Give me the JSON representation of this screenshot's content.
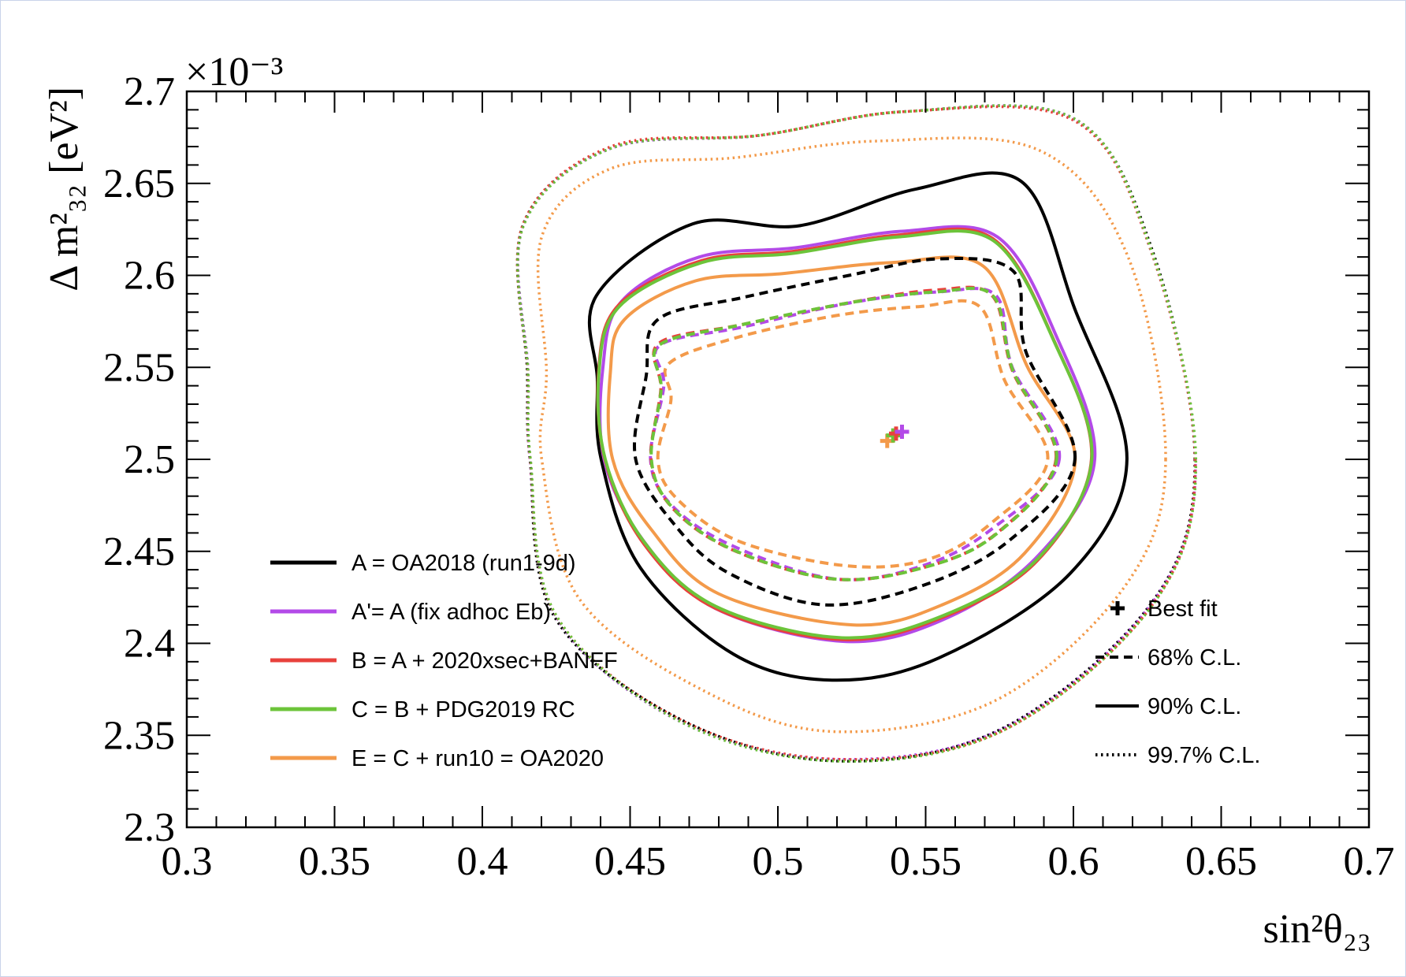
{
  "chart_data": {
    "type": "line",
    "plot": "contour",
    "xlabel": "sin²θ₂₃",
    "ylabel": "Δ m²₃₂ [eV²]",
    "y_multiplier": "×10⁻³",
    "xlim": [
      0.3,
      0.7
    ],
    "ylim": [
      2.3,
      2.7
    ],
    "x_ticks": [
      0.3,
      0.35,
      0.4,
      0.45,
      0.5,
      0.55,
      0.6,
      0.65,
      0.7
    ],
    "x_tick_labels": [
      "0.3",
      "0.35",
      "0.4",
      "0.45",
      "0.5",
      "0.55",
      "0.6",
      "0.65",
      "0.7"
    ],
    "y_ticks": [
      2.3,
      2.35,
      2.4,
      2.45,
      2.5,
      2.55,
      2.6,
      2.65,
      2.7
    ],
    "y_tick_labels": [
      "2.3",
      "2.35",
      "2.4",
      "2.45",
      "2.5",
      "2.55",
      "2.6",
      "2.65",
      "2.7"
    ],
    "grid": false,
    "colors": {
      "A": "#000000",
      "A_prime": "#b34ae8",
      "B": "#e8413c",
      "C": "#6cc43a",
      "E": "#f39a4a"
    },
    "legend_position": "lower-left",
    "style_legend_position": "lower-right",
    "series_legend": [
      {
        "key": "A",
        "label": "A = OA2018 (run1-9d)",
        "color": "#000000"
      },
      {
        "key": "A_prime",
        "label": "A'= A (fix adhoc Eb)",
        "color": "#b34ae8"
      },
      {
        "key": "B",
        "label": "B = A + 2020xsec+BANFF",
        "color": "#e8413c"
      },
      {
        "key": "C",
        "label": "C = B + PDG2019 RC",
        "color": "#6cc43a"
      },
      {
        "key": "E",
        "label": "E = C + run10 = OA2020",
        "color": "#f39a4a"
      }
    ],
    "style_legend": [
      {
        "style": "marker",
        "label": "Best fit"
      },
      {
        "style": "dashed",
        "label": "68% C.L."
      },
      {
        "style": "solid",
        "label": "90% C.L."
      },
      {
        "style": "dotted",
        "label": "99.7% C.L."
      }
    ],
    "best_fit": [
      {
        "series": "A_prime",
        "x": 0.542,
        "y": 2.515
      },
      {
        "series": "B",
        "x": 0.54,
        "y": 2.514
      },
      {
        "series": "C",
        "x": 0.539,
        "y": 2.513
      },
      {
        "series": "E",
        "x": 0.537,
        "y": 2.51
      }
    ],
    "contours": [
      {
        "series": "A",
        "level": "68% C.L.",
        "style": "dashed",
        "points": [
          [
            0.6005,
            2.5
          ],
          [
            0.5838,
            2.559
          ],
          [
            0.5798,
            2.602
          ],
          [
            0.5545,
            2.609
          ],
          [
            0.5241,
            2.6
          ],
          [
            0.4883,
            2.588
          ],
          [
            0.4594,
            2.576
          ],
          [
            0.4554,
            2.545
          ],
          [
            0.4519,
            2.5
          ],
          [
            0.4658,
            2.463
          ],
          [
            0.4836,
            2.438
          ],
          [
            0.5149,
            2.421
          ],
          [
            0.5483,
            2.431
          ],
          [
            0.5784,
            2.456
          ]
        ]
      },
      {
        "series": "A",
        "level": "90% C.L.",
        "style": "solid",
        "points": [
          [
            0.6181,
            2.5
          ],
          [
            0.6004,
            2.582
          ],
          [
            0.5824,
            2.651
          ],
          [
            0.5469,
            2.647
          ],
          [
            0.5073,
            2.627
          ],
          [
            0.4712,
            2.628
          ],
          [
            0.4386,
            2.589
          ],
          [
            0.4389,
            2.544
          ],
          [
            0.4402,
            2.5
          ],
          [
            0.4535,
            2.441
          ],
          [
            0.4851,
            2.394
          ],
          [
            0.5183,
            2.38
          ],
          [
            0.5544,
            2.392
          ],
          [
            0.5989,
            2.438
          ]
        ]
      },
      {
        "series": "A",
        "level": "99.7% C.L.",
        "style": "dotted",
        "points": [
          [
            0.6411,
            2.5
          ],
          [
            0.6264,
            2.615
          ],
          [
            0.6003,
            2.685
          ],
          [
            0.5428,
            2.689
          ],
          [
            0.4935,
            2.676
          ],
          [
            0.4434,
            2.669
          ],
          [
            0.4137,
            2.627
          ],
          [
            0.4152,
            2.548
          ],
          [
            0.4161,
            2.5
          ],
          [
            0.4242,
            2.415
          ],
          [
            0.4666,
            2.359
          ],
          [
            0.5199,
            2.336
          ],
          [
            0.5763,
            2.354
          ],
          [
            0.6269,
            2.423
          ]
        ]
      },
      {
        "series": "A_prime",
        "level": "68% C.L.",
        "style": "dashed",
        "points": [
          [
            0.5952,
            2.5
          ],
          [
            0.5793,
            2.55
          ],
          [
            0.5738,
            2.589
          ],
          [
            0.5542,
            2.591
          ],
          [
            0.5242,
            2.585
          ],
          [
            0.4883,
            2.572
          ],
          [
            0.4601,
            2.562
          ],
          [
            0.4614,
            2.54
          ],
          [
            0.4569,
            2.5
          ],
          [
            0.4641,
            2.475
          ],
          [
            0.4846,
            2.453
          ],
          [
            0.5195,
            2.435
          ],
          [
            0.5487,
            2.442
          ],
          [
            0.5723,
            2.462
          ]
        ]
      },
      {
        "series": "A_prime",
        "level": "90% C.L.",
        "style": "solid",
        "points": [
          [
            0.6072,
            2.5
          ],
          [
            0.5942,
            2.567
          ],
          [
            0.5742,
            2.621
          ],
          [
            0.5421,
            2.624
          ],
          [
            0.5058,
            2.615
          ],
          [
            0.4734,
            2.61
          ],
          [
            0.4472,
            2.586
          ],
          [
            0.4408,
            2.55
          ],
          [
            0.4412,
            2.5
          ],
          [
            0.4544,
            2.456
          ],
          [
            0.4788,
            2.419
          ],
          [
            0.5232,
            2.401
          ],
          [
            0.5575,
            2.414
          ],
          [
            0.5883,
            2.448
          ]
        ]
      },
      {
        "series": "A_prime",
        "level": "99.7% C.L.",
        "style": "dotted",
        "points": [
          [
            0.6413,
            2.5
          ],
          [
            0.6259,
            2.615
          ],
          [
            0.6002,
            2.685
          ],
          [
            0.5425,
            2.689
          ],
          [
            0.4934,
            2.676
          ],
          [
            0.4434,
            2.669
          ],
          [
            0.4138,
            2.627
          ],
          [
            0.4155,
            2.548
          ],
          [
            0.4161,
            2.5
          ],
          [
            0.4248,
            2.415
          ],
          [
            0.4663,
            2.358
          ],
          [
            0.5193,
            2.337
          ],
          [
            0.5768,
            2.354
          ],
          [
            0.6271,
            2.423
          ]
        ]
      },
      {
        "series": "B",
        "level": "68% C.L.",
        "style": "dashed",
        "points": [
          [
            0.5941,
            2.5
          ],
          [
            0.5794,
            2.548
          ],
          [
            0.5725,
            2.589
          ],
          [
            0.5533,
            2.592
          ],
          [
            0.5237,
            2.585
          ],
          [
            0.4872,
            2.573
          ],
          [
            0.4597,
            2.563
          ],
          [
            0.4604,
            2.538
          ],
          [
            0.4571,
            2.5
          ],
          [
            0.4641,
            2.474
          ],
          [
            0.4844,
            2.451
          ],
          [
            0.5187,
            2.435
          ],
          [
            0.5488,
            2.441
          ],
          [
            0.5734,
            2.459
          ]
        ]
      },
      {
        "series": "B",
        "level": "90% C.L.",
        "style": "solid",
        "points": [
          [
            0.6061,
            2.5
          ],
          [
            0.5933,
            2.565
          ],
          [
            0.5727,
            2.62
          ],
          [
            0.5412,
            2.622
          ],
          [
            0.5051,
            2.613
          ],
          [
            0.4742,
            2.608
          ],
          [
            0.4462,
            2.584
          ],
          [
            0.4394,
            2.549
          ],
          [
            0.4415,
            2.5
          ],
          [
            0.4547,
            2.454
          ],
          [
            0.4789,
            2.419
          ],
          [
            0.5216,
            2.402
          ],
          [
            0.5556,
            2.414
          ],
          [
            0.5878,
            2.445
          ]
        ]
      },
      {
        "series": "B",
        "level": "99.7% C.L.",
        "style": "dotted",
        "points": [
          [
            0.6412,
            2.5
          ],
          [
            0.6261,
            2.614
          ],
          [
            0.6004,
            2.684
          ],
          [
            0.5426,
            2.689
          ],
          [
            0.4934,
            2.676
          ],
          [
            0.4435,
            2.67
          ],
          [
            0.4136,
            2.627
          ],
          [
            0.4154,
            2.547
          ],
          [
            0.4162,
            2.5
          ],
          [
            0.4246,
            2.416
          ],
          [
            0.4663,
            2.359
          ],
          [
            0.5196,
            2.337
          ],
          [
            0.5766,
            2.353
          ],
          [
            0.6272,
            2.422
          ]
        ]
      },
      {
        "series": "C",
        "level": "68% C.L.",
        "style": "dashed",
        "points": [
          [
            0.5943,
            2.5
          ],
          [
            0.5796,
            2.548
          ],
          [
            0.5727,
            2.589
          ],
          [
            0.5534,
            2.591
          ],
          [
            0.5238,
            2.585
          ],
          [
            0.4873,
            2.573
          ],
          [
            0.4598,
            2.562
          ],
          [
            0.4605,
            2.538
          ],
          [
            0.4572,
            2.5
          ],
          [
            0.4642,
            2.474
          ],
          [
            0.4846,
            2.451
          ],
          [
            0.5188,
            2.435
          ],
          [
            0.5489,
            2.441
          ],
          [
            0.5736,
            2.459
          ]
        ]
      },
      {
        "series": "C",
        "level": "90% C.L.",
        "style": "solid",
        "points": [
          [
            0.6062,
            2.5
          ],
          [
            0.5935,
            2.564
          ],
          [
            0.5728,
            2.619
          ],
          [
            0.5413,
            2.621
          ],
          [
            0.5052,
            2.612
          ],
          [
            0.4743,
            2.607
          ],
          [
            0.4463,
            2.583
          ],
          [
            0.4395,
            2.548
          ],
          [
            0.4416,
            2.5
          ],
          [
            0.4548,
            2.455
          ],
          [
            0.4791,
            2.42
          ],
          [
            0.5217,
            2.403
          ],
          [
            0.5558,
            2.415
          ],
          [
            0.5879,
            2.446
          ]
        ]
      },
      {
        "series": "C",
        "level": "99.7% C.L.",
        "style": "dotted",
        "points": [
          [
            0.6414,
            2.5
          ],
          [
            0.6263,
            2.614
          ],
          [
            0.6005,
            2.685
          ],
          [
            0.5427,
            2.689
          ],
          [
            0.4933,
            2.676
          ],
          [
            0.4434,
            2.669
          ],
          [
            0.4137,
            2.626
          ],
          [
            0.4155,
            2.547
          ],
          [
            0.4163,
            2.5
          ],
          [
            0.4247,
            2.416
          ],
          [
            0.4664,
            2.358
          ],
          [
            0.5197,
            2.336
          ],
          [
            0.5767,
            2.353
          ],
          [
            0.6273,
            2.422
          ]
        ]
      },
      {
        "series": "E",
        "level": "68% C.L.",
        "style": "dashed",
        "points": [
          [
            0.5913,
            2.5
          ],
          [
            0.5767,
            2.543
          ],
          [
            0.5683,
            2.583
          ],
          [
            0.5476,
            2.583
          ],
          [
            0.5191,
            2.578
          ],
          [
            0.4856,
            2.566
          ],
          [
            0.4631,
            2.552
          ],
          [
            0.4638,
            2.532
          ],
          [
            0.4594,
            2.5
          ],
          [
            0.4662,
            2.478
          ],
          [
            0.4876,
            2.455
          ],
          [
            0.5241,
            2.442
          ],
          [
            0.5515,
            2.446
          ],
          [
            0.5727,
            2.466
          ]
        ]
      },
      {
        "series": "E",
        "level": "90% C.L.",
        "style": "solid",
        "points": [
          [
            0.6006,
            2.5
          ],
          [
            0.5842,
            2.551
          ],
          [
            0.5695,
            2.605
          ],
          [
            0.5385,
            2.607
          ],
          [
            0.5016,
            2.601
          ],
          [
            0.4721,
            2.597
          ],
          [
            0.4481,
            2.576
          ],
          [
            0.4433,
            2.547
          ],
          [
            0.4441,
            2.5
          ],
          [
            0.4571,
            2.462
          ],
          [
            0.4799,
            2.427
          ],
          [
            0.5252,
            2.41
          ],
          [
            0.5557,
            2.421
          ],
          [
            0.5835,
            2.449
          ]
        ]
      },
      {
        "series": "E",
        "level": "99.7% C.L.",
        "style": "dotted",
        "points": [
          [
            0.6312,
            2.5
          ],
          [
            0.6185,
            2.61
          ],
          [
            0.5884,
            2.668
          ],
          [
            0.5336,
            2.673
          ],
          [
            0.4856,
            2.664
          ],
          [
            0.4434,
            2.658
          ],
          [
            0.4201,
            2.621
          ],
          [
            0.4217,
            2.547
          ],
          [
            0.4201,
            2.5
          ],
          [
            0.4329,
            2.424
          ],
          [
            0.4752,
            2.374
          ],
          [
            0.5193,
            2.352
          ],
          [
            0.5737,
            2.369
          ],
          [
            0.6174,
            2.431
          ]
        ]
      }
    ]
  }
}
